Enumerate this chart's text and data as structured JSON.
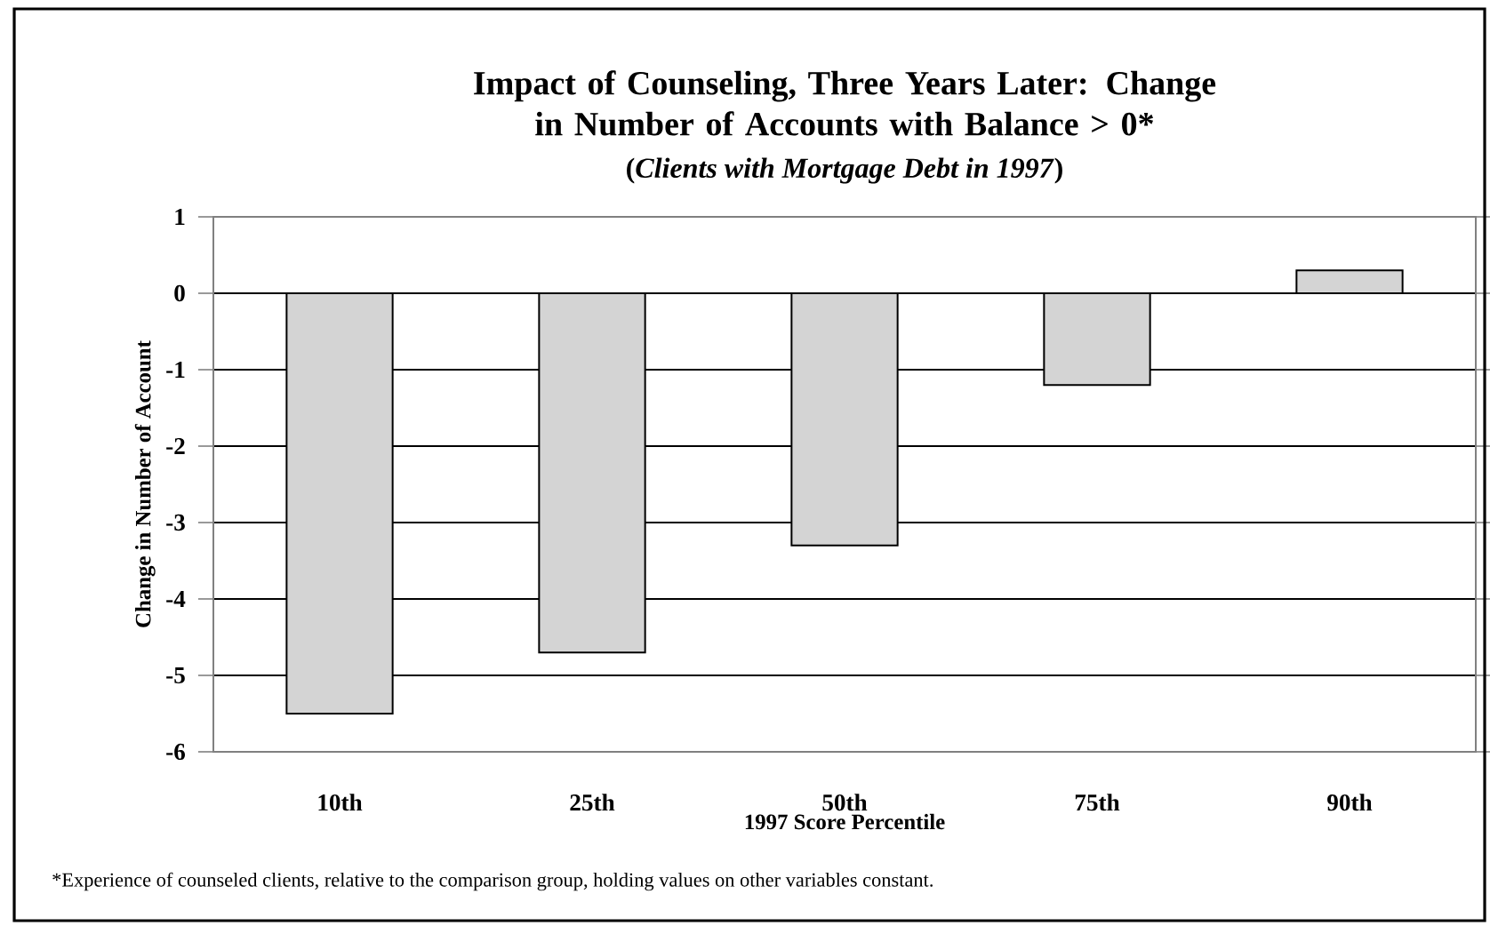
{
  "chart_data": {
    "type": "bar",
    "title": "Impact of Counseling, Three Years Later: Change in Number of Accounts with Balance > 0*",
    "subtitle": "(*Clients with Mortgage Debt in 1997*)",
    "xlabel": "1997 Score Percentile",
    "ylabel": "Change in Number of Account",
    "categories": [
      "10th",
      "25th",
      "50th",
      "75th",
      "90th"
    ],
    "values": [
      -5.5,
      -4.7,
      -3.3,
      -1.2,
      0.3
    ],
    "color": "#d4d4d4",
    "ylim": [
      -6,
      1
    ],
    "yticks": [
      -6,
      -5,
      -4,
      -3,
      -2,
      -1,
      0,
      1
    ],
    "grid": "y",
    "annotations": [
      "*Experience of counseled clients, relative to the comparison group, holding values on other variables constant."
    ]
  }
}
